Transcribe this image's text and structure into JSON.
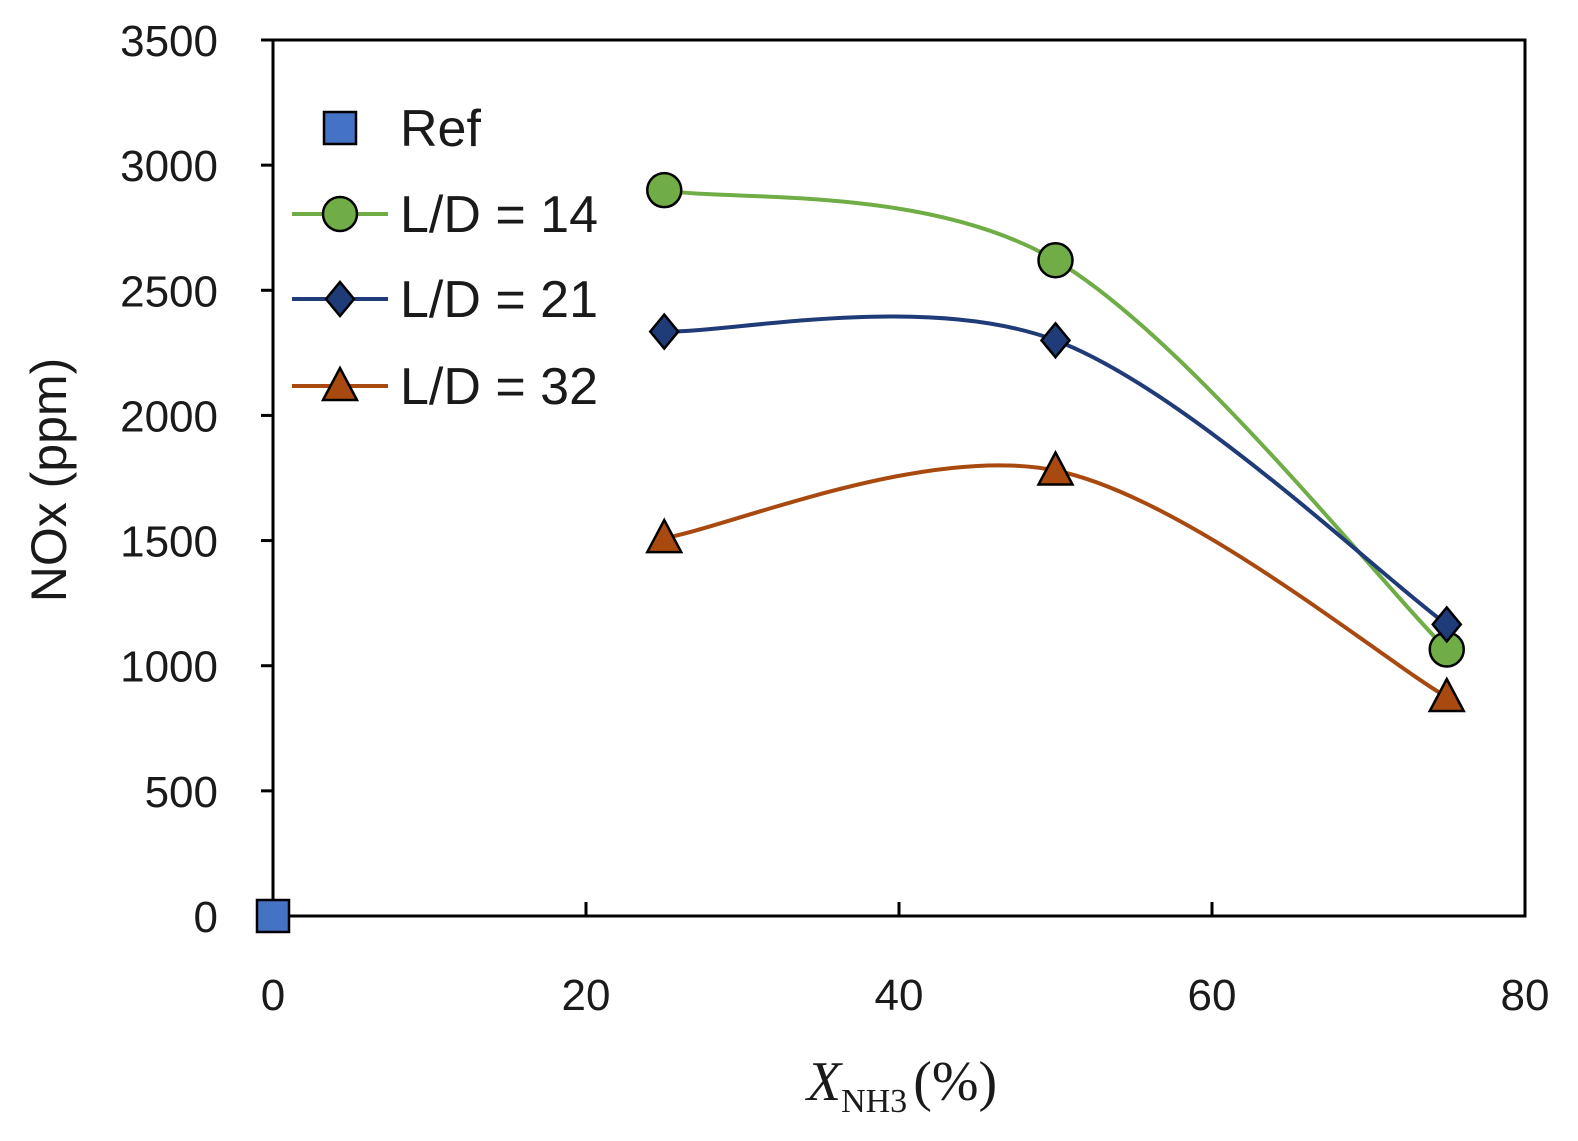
{
  "chart_data": {
    "type": "line",
    "xlabel": {
      "main": "X",
      "sub": "NH3",
      "unit": "(%)"
    },
    "ylabel": "NOx (ppm)",
    "xlim": [
      0,
      80
    ],
    "ylim": [
      0,
      3500
    ],
    "xticks": [
      0,
      20,
      40,
      60,
      80
    ],
    "yticks": [
      0,
      500,
      1000,
      1500,
      2000,
      2500,
      3000,
      3500
    ],
    "grid": false,
    "legend_position": "top-left",
    "series": [
      {
        "name": "Ref",
        "marker": "square",
        "line": false,
        "color": "#4472c4",
        "x": [
          0
        ],
        "values": [
          0
        ]
      },
      {
        "name": "L/D = 14",
        "marker": "circle",
        "line": true,
        "color": "#70ad47",
        "x": [
          25,
          50,
          75
        ],
        "values": [
          2900,
          2620,
          1065
        ]
      },
      {
        "name": "L/D = 21",
        "marker": "diamond",
        "line": true,
        "color": "#1f3b78",
        "x": [
          25,
          50,
          75
        ],
        "values": [
          2335,
          2300,
          1165
        ]
      },
      {
        "name": "L/D = 32",
        "marker": "triangle",
        "line": true,
        "color": "#a84a0f",
        "x": [
          25,
          50,
          75
        ],
        "values": [
          1510,
          1780,
          875
        ]
      }
    ]
  }
}
